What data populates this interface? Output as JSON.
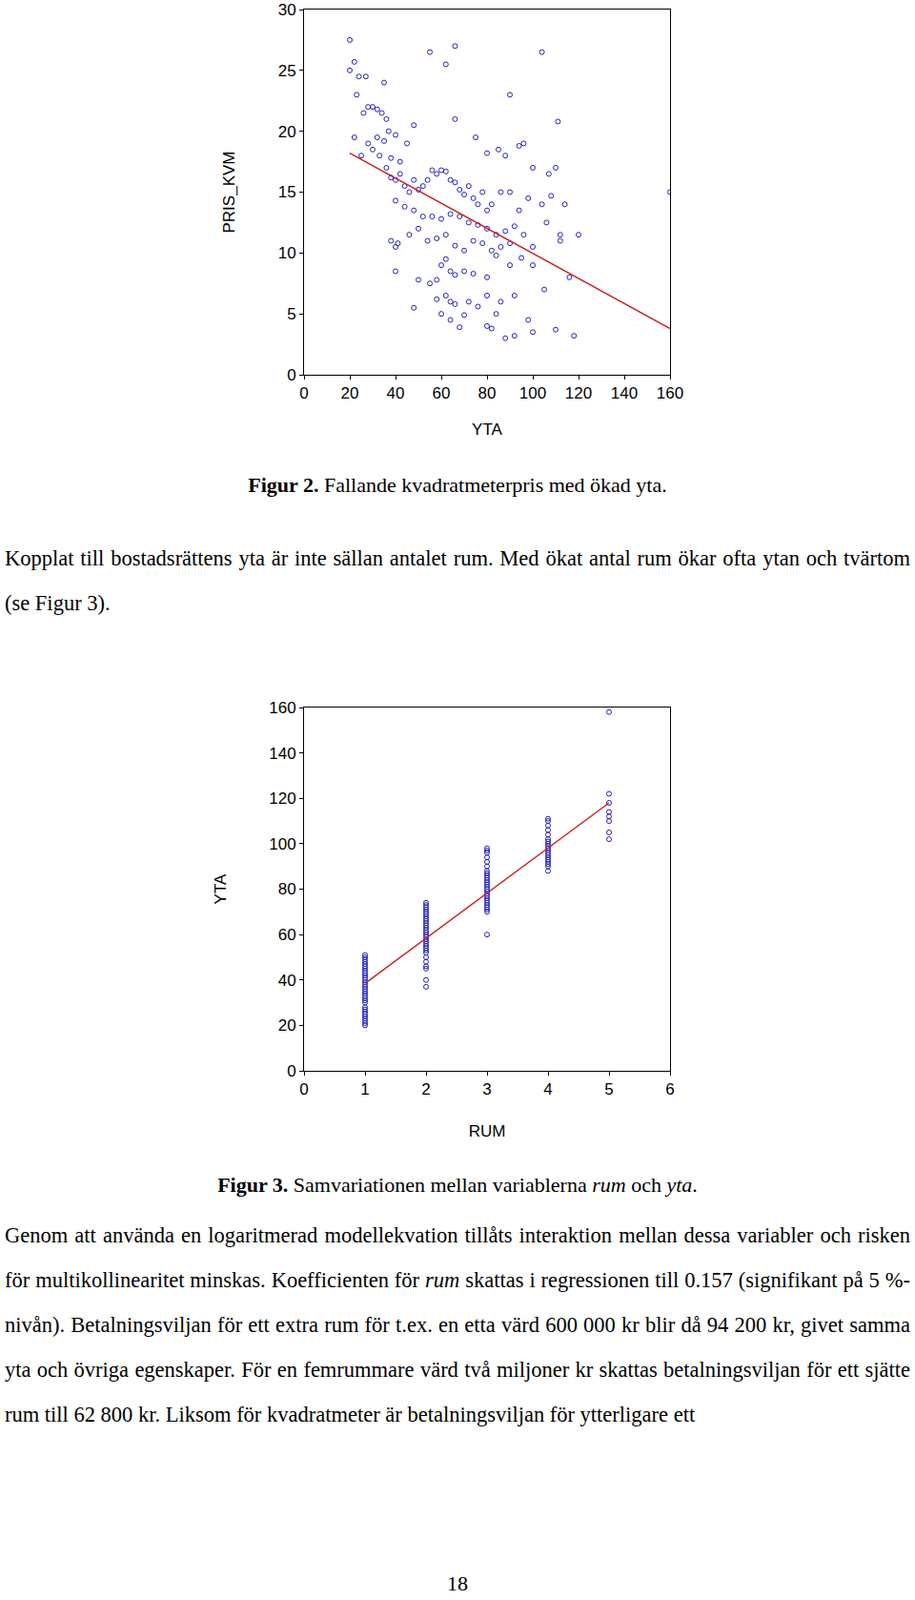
{
  "chart_data": [
    {
      "type": "scatter",
      "x_label": "YTA",
      "y_label": "PRIS_KVM",
      "xlim": [
        0,
        160
      ],
      "xticks": [
        0,
        20,
        40,
        60,
        80,
        100,
        120,
        140,
        160
      ],
      "ylim": [
        0,
        30
      ],
      "yticks": [
        0,
        5,
        10,
        15,
        20,
        25,
        30
      ],
      "grid": false,
      "caption": [
        {
          "text": "Figur 2.",
          "bold": true
        },
        {
          "text": " Fallande kvadratmeterpris med ökad yta."
        }
      ],
      "series": [
        {
          "type": "scatter",
          "marker": "circle-open",
          "color": "#2222bb",
          "x": [
            20,
            22,
            20,
            24,
            27,
            35,
            23,
            28,
            30,
            32,
            26,
            34,
            36,
            22,
            28,
            32,
            35,
            37,
            40,
            30,
            25,
            33,
            38,
            42,
            45,
            48,
            55,
            62,
            66,
            90,
            104,
            111,
            66,
            75,
            80,
            85,
            94,
            96,
            88,
            100,
            110,
            107,
            120,
            36,
            38,
            40,
            42,
            44,
            46,
            48,
            50,
            52,
            54,
            56,
            58,
            60,
            62,
            64,
            66,
            68,
            70,
            72,
            74,
            76,
            78,
            80,
            82,
            86,
            90,
            94,
            98,
            104,
            40,
            44,
            48,
            52,
            56,
            60,
            64,
            68,
            72,
            76,
            80,
            84,
            88,
            92,
            96,
            100,
            106,
            112,
            108,
            114,
            40,
            41,
            46,
            50,
            54,
            58,
            62,
            66,
            70,
            74,
            78,
            82,
            86,
            90,
            95,
            62,
            60,
            64,
            66,
            70,
            74,
            80,
            84,
            90,
            100,
            50,
            55,
            58,
            40,
            38,
            105,
            116,
            112,
            62,
            64,
            66,
            58,
            48,
            60,
            72,
            76,
            80,
            86,
            92,
            98,
            110,
            84,
            64,
            68,
            80,
            82,
            88,
            92,
            100,
            118,
            70,
            160
          ],
          "values": [
            27.5,
            25.7,
            25,
            24.5,
            24.5,
            24,
            23,
            22,
            22,
            21.8,
            21.5,
            21.5,
            21,
            19.5,
            19,
            19.5,
            19.2,
            20,
            19.7,
            18.5,
            18,
            18,
            17.8,
            17.5,
            19,
            20.5,
            26.5,
            25.5,
            27,
            23,
            26.5,
            20.8,
            21,
            19.5,
            18.2,
            18.5,
            18.8,
            19,
            18,
            17,
            17,
            16.5,
            11.5,
            17,
            16.2,
            16,
            16.5,
            15.5,
            15,
            16,
            15.2,
            15.5,
            16,
            16.8,
            16.5,
            16.8,
            16.7,
            16,
            15.8,
            15.2,
            14.8,
            15.5,
            14.5,
            14,
            15,
            13.5,
            14,
            15,
            15,
            13.5,
            14.5,
            14,
            14.3,
            13.8,
            13.5,
            13,
            13,
            12.8,
            13.2,
            13,
            12.5,
            12.3,
            12,
            11.5,
            11.8,
            12.2,
            11.5,
            10.5,
            12.5,
            11.5,
            14.7,
            14,
            10.5,
            10.8,
            11.5,
            12,
            11,
            11.2,
            11.5,
            10.6,
            10.2,
            11,
            10.8,
            10.2,
            10.5,
            10.8,
            9.6,
            9.5,
            9,
            8.5,
            8.2,
            8.5,
            8.3,
            8,
            9.8,
            9,
            9,
            7.8,
            7.5,
            7.8,
            8.5,
            11,
            7,
            8,
            11,
            6.5,
            6,
            5.8,
            6.2,
            5.5,
            5,
            6,
            5.6,
            6.5,
            6,
            6.5,
            4.5,
            3.7,
            5,
            4.5,
            3.9,
            4,
            3.8,
            3,
            3.2,
            3.5,
            3.2,
            4.9,
            15
          ]
        },
        {
          "type": "line",
          "color": "#cc2222",
          "x": [
            20,
            160
          ],
          "values": [
            18.2,
            3.8
          ]
        }
      ]
    },
    {
      "type": "scatter",
      "x_label": "RUM",
      "y_label": "YTA",
      "xlim": [
        0,
        6
      ],
      "xticks": [
        0,
        1,
        2,
        3,
        4,
        5,
        6
      ],
      "ylim": [
        0,
        160
      ],
      "yticks": [
        0,
        20,
        40,
        60,
        80,
        100,
        120,
        140,
        160
      ],
      "grid": false,
      "caption": [
        {
          "text": "Figur 3.",
          "bold": true
        },
        {
          "text": " Samvariationen mellan variablerna "
        },
        {
          "text": "rum",
          "italic": true
        },
        {
          "text": " och "
        },
        {
          "text": "yta",
          "italic": true
        },
        {
          "text": "."
        }
      ],
      "series": [
        {
          "type": "scatter",
          "marker": "circle-open",
          "color": "#2222bb",
          "x": [
            1,
            1,
            1,
            1,
            1,
            1,
            1,
            1,
            1,
            1,
            1,
            1,
            1,
            1,
            1,
            1,
            1,
            1,
            1,
            1,
            1,
            1,
            1,
            1,
            1,
            1,
            1,
            1,
            1,
            1,
            1,
            2,
            2,
            2,
            2,
            2,
            2,
            2,
            2,
            2,
            2,
            2,
            2,
            2,
            2,
            2,
            2,
            2,
            2,
            2,
            2,
            2,
            2,
            2,
            2,
            2,
            2,
            2,
            2,
            2,
            3,
            3,
            3,
            3,
            3,
            3,
            3,
            3,
            3,
            3,
            3,
            3,
            3,
            3,
            3,
            3,
            3,
            3,
            3,
            3,
            3,
            3,
            3,
            3,
            3,
            3,
            4,
            4,
            4,
            4,
            4,
            4,
            4,
            4,
            4,
            4,
            4,
            4,
            4,
            4,
            4,
            4,
            4,
            4,
            4,
            5,
            5,
            5,
            5,
            5,
            5,
            5,
            5
          ],
          "values": [
            20,
            21,
            22,
            23,
            24,
            25,
            26,
            27,
            28,
            30,
            31,
            32,
            33,
            34,
            35,
            36,
            37,
            38,
            39,
            40,
            41,
            42,
            43,
            44,
            45,
            46,
            47,
            48,
            49,
            50,
            51,
            37,
            40,
            45,
            46,
            48,
            50,
            52,
            53,
            54,
            55,
            56,
            57,
            58,
            59,
            60,
            61,
            62,
            63,
            64,
            65,
            66,
            67,
            68,
            69,
            70,
            71,
            72,
            73,
            74,
            60,
            70,
            71,
            72,
            73,
            74,
            75,
            76,
            77,
            78,
            79,
            80,
            81,
            82,
            83,
            84,
            85,
            86,
            87,
            88,
            90,
            92,
            94,
            96,
            97,
            98,
            88,
            90,
            91,
            92,
            93,
            94,
            95,
            96,
            97,
            98,
            99,
            100,
            101,
            102,
            104,
            106,
            108,
            110,
            111,
            102,
            105,
            110,
            112,
            114,
            118,
            122,
            158
          ]
        },
        {
          "type": "line",
          "color": "#cc2222",
          "x": [
            1,
            5
          ],
          "values": [
            38.5,
            118
          ]
        }
      ]
    }
  ],
  "document": {
    "paragraphs": [
      [
        {
          "text": "Kopplat till bostadsrättens yta är inte sällan antalet rum. Med ökat antal rum ökar ofta ytan och tvärtom (se Figur 3)."
        }
      ],
      [
        {
          "text": "Genom att använda en logaritmerad modellekvation tillåts interaktion mellan dessa variabler och risken för multikollinearitet minskas. Koefficienten för "
        },
        {
          "text": "rum",
          "italic": true
        },
        {
          "text": " skattas i regressionen till 0.157 (signifikant på 5 %-nivån). Betalningsviljan för ett extra rum för t.ex. en etta värd 600 000 kr blir då 94 200 kr, givet samma yta och övriga egenskaper. För en femrummare värd två miljoner kr skattas betalningsviljan för ett sjätte rum till 62 800 kr. Liksom för kvadratmeter är betalningsviljan för ytterligare ett"
        }
      ]
    ],
    "page_number": "18"
  }
}
